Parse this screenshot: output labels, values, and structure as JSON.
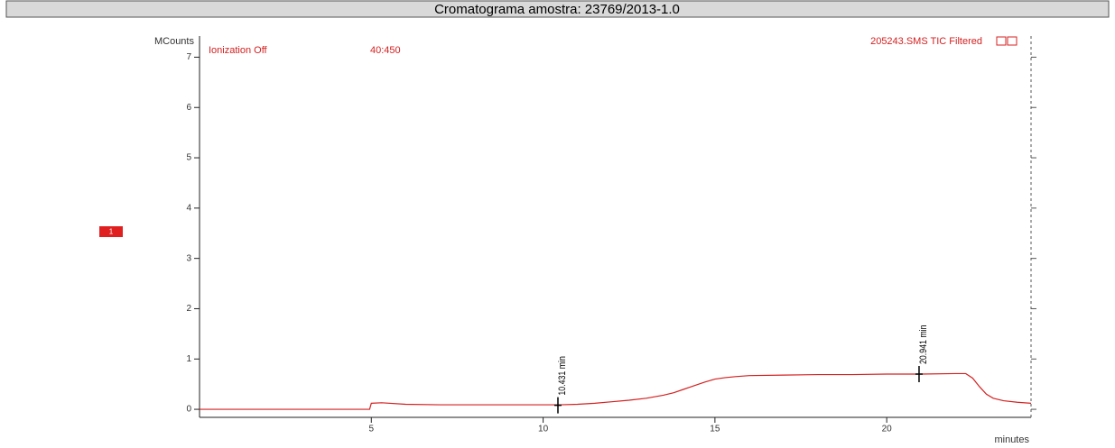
{
  "chart_data": {
    "type": "line",
    "title": "Cromatograma amostra: 23769/2013-1.0",
    "y_label": "MCounts",
    "x_label": "minutes",
    "header_left": "Ionization Off",
    "header_mid": "40:450",
    "header_right": "205243.SMS TIC Filtered",
    "trace_tag": "1",
    "x": [
      0,
      4.95,
      5.0,
      5.3,
      6,
      7,
      8,
      9,
      10,
      10.5,
      11,
      11.5,
      12,
      12.5,
      13,
      13.5,
      13.8,
      14.1,
      14.4,
      14.7,
      15,
      15.3,
      15.6,
      16,
      17,
      18,
      19,
      20,
      21,
      22,
      22.3,
      22.5,
      22.7,
      22.9,
      23.1,
      23.4,
      23.8,
      24.2
    ],
    "series": [
      {
        "name": "205243.SMS TIC Filtered",
        "color": "#d42020",
        "values": [
          0.0,
          0.0,
          0.12,
          0.13,
          0.1,
          0.09,
          0.09,
          0.09,
          0.09,
          0.09,
          0.1,
          0.12,
          0.15,
          0.18,
          0.22,
          0.28,
          0.33,
          0.4,
          0.47,
          0.54,
          0.6,
          0.63,
          0.65,
          0.67,
          0.68,
          0.69,
          0.69,
          0.7,
          0.7,
          0.71,
          0.71,
          0.62,
          0.45,
          0.3,
          0.22,
          0.17,
          0.14,
          0.12
        ]
      }
    ],
    "annotations": [
      {
        "text": "10.431 min",
        "x": 10.431,
        "y": 0.08
      },
      {
        "text": "20.941 min",
        "x": 20.941,
        "y": 0.7
      }
    ],
    "xlim": [
      0,
      24.2
    ],
    "ylim": [
      -0.16,
      7.42
    ],
    "xticks": [
      5,
      10,
      15,
      20
    ],
    "yticks": [
      0,
      1,
      2,
      3,
      4,
      5,
      6,
      7
    ]
  }
}
